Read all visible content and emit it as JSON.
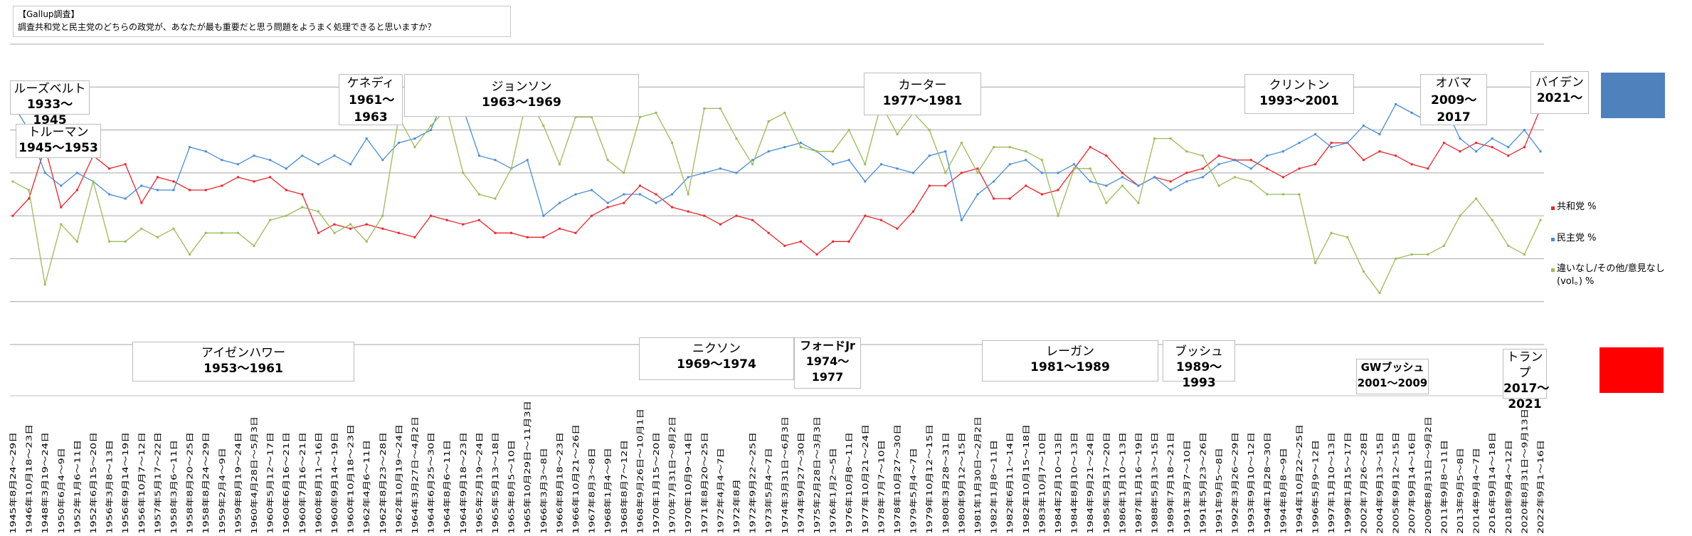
{
  "caption": {
    "line1": "【Gallup調査】",
    "line2": "調査共和党と民主党のどちらの政党が、あなたが最も重要だと思う問題をようまく処理できると思いますか？"
  },
  "presidents_top": [
    {
      "name": "ルーズベルト",
      "years": "1933〜1945"
    },
    {
      "name": "トルーマン",
      "years": "1945〜1953"
    },
    {
      "name": "ケネディ",
      "years": "1961〜1963"
    },
    {
      "name": "ジョンソン",
      "years": "1963〜1969"
    },
    {
      "name": "カーター",
      "years": "1977〜1981"
    },
    {
      "name": "クリントン",
      "years": "1993〜2001"
    },
    {
      "name": "オバマ",
      "years": "2009〜2017"
    },
    {
      "name": "バイデン",
      "years": "2021〜"
    }
  ],
  "presidents_bottom": [
    {
      "name": "アイゼンハワー",
      "years": "1953〜1961"
    },
    {
      "name": "ニクソン",
      "years": "1969〜1974"
    },
    {
      "name": "フォードJr",
      "years": "1974〜1977"
    },
    {
      "name": "レーガン",
      "years": "1981〜1989"
    },
    {
      "name": "ブッシュ",
      "years": "1989〜1993"
    },
    {
      "name": "GWブッシュ",
      "years": "2001〜2009"
    },
    {
      "name": "トランプ",
      "years": "2017〜2021"
    }
  ],
  "legend": {
    "republican": "共和党 %",
    "democrat": "民主党 %",
    "other": "違いなし/その他/意見なし(vol。) %"
  },
  "colors": {
    "republican": "#e8262e",
    "democrat": "#4a8cd6",
    "other": "#9bbb59",
    "dem_swatch": "#4f81bd",
    "rep_swatch": "#ff0000",
    "grid": "#a6a6a6"
  },
  "chart_data": {
    "type": "line",
    "ylim": [
      0,
      70
    ],
    "grid": true,
    "legend_position": "right",
    "x": [
      "1945年8月24〜29日",
      "1946年10月18〜23日",
      "1948年3月19〜24日",
      "1950年6月4〜9日",
      "1952年1月6〜11日",
      "1952年6月15〜20日",
      "1956年3月8〜13日",
      "1956年9月14〜19日",
      "1956年10月7〜12日",
      "1957年5月17〜22日",
      "1958年3月6〜11日",
      "1958年8月20〜25日",
      "1958年8月24〜29日",
      "1959年2月4〜9日",
      "1959年8月19〜24日",
      "1960年4月28日〜5月3日",
      "1960年5月12〜17日",
      "1960年6月16〜21日",
      "1960年7月16〜21日",
      "1960年8月11〜16日",
      "1960年9月14〜19日",
      "1960年10月18〜23日",
      "1962年4月6〜11日",
      "1962年8月23〜28日",
      "1962年10月19〜24日",
      "1964年3月27日〜4月2日",
      "1964年6月25〜30日",
      "1964年8月6〜11日",
      "1964年9月18〜23日",
      "1965年2月19〜24日",
      "1965年5月13〜18日",
      "1965年8月5〜10日",
      "1965年10月29日〜11月3日",
      "1966年3月3〜8日",
      "1966年8月18〜23日",
      "1966年10月21〜26日",
      "1967年8月3〜8日",
      "1968年1月4〜9日",
      "1968年8月7〜12日",
      "1968年9月26日〜10月1日",
      "1970年1月15〜20日",
      "1970年7月31日〜8月2日",
      "1970年10月9〜14日",
      "1971年8月20〜25日",
      "1972年4月4〜7日",
      "1972年8月",
      "1972年9月22〜25日",
      "1973年5月4〜7日",
      "1974年3月31日〜6月3日",
      "1974年9月27〜30日",
      "1975年2月28日〜3月3日",
      "1976年1月2〜5日",
      "1976年10月8〜11日",
      "1977年10月21〜24日",
      "1978年7月7〜10日",
      "1978年10月27〜30日",
      "1979年5月4〜7日",
      "1979年10月12〜15日",
      "1980年3月28〜31日",
      "1980年9月12〜15日",
      "1981年1月30日〜2月2日",
      "1982年1月8〜11日",
      "1982年6月11〜14日",
      "1982年10月15〜18日",
      "1983年10月7〜10日",
      "1984年2月10〜13日",
      "1984年8月10〜13日",
      "1984年9月21〜24日",
      "1985年5月17〜20日",
      "1986年1月10〜13日",
      "1987年1月16〜19日",
      "1988年5月13〜15日",
      "1989年7月18〜21日",
      "1991年3月7〜10日",
      "1991年5月23〜26日",
      "1991年9月5〜8日",
      "1992年3月26〜29日",
      "1993年9月10〜12日",
      "1994年1月28〜30日",
      "1994年8月8〜9日",
      "1994年10月22〜25日",
      "1996年5月9〜12日",
      "1997年1月10〜13日",
      "1999年1月15〜17日",
      "2002年7月26〜28日",
      "2004年9月13〜15日",
      "2005年9月12〜15日",
      "2007年9月14〜16日",
      "2009年8月31日〜9月2日",
      "2011年9月8〜11日",
      "2013年9月5〜8日",
      "2014年9月4〜7日",
      "2016年9月14〜18日",
      "2018年9月4〜12日",
      "2020年8月31日〜9月13日",
      "2022年9月1〜16日"
    ],
    "series": [
      {
        "name": "共和党 %",
        "values": [
          30,
          34,
          46,
          32,
          36,
          44,
          41,
          42,
          33,
          39,
          38,
          36,
          36,
          37,
          39,
          38,
          39,
          36,
          35,
          26,
          28,
          27,
          28,
          27,
          26,
          25,
          30,
          29,
          28,
          29,
          26,
          26,
          25,
          25,
          27,
          26,
          30,
          32,
          33,
          37,
          35,
          32,
          31,
          30,
          28,
          30,
          29,
          26,
          23,
          24,
          21,
          24,
          24,
          30,
          29,
          27,
          31,
          37,
          37,
          40,
          41,
          34,
          34,
          37,
          35,
          36,
          41,
          46,
          44,
          40,
          37,
          39,
          38,
          40,
          41,
          44,
          43,
          43,
          41,
          39,
          41,
          42,
          47,
          47,
          43,
          45,
          44,
          42,
          41,
          47,
          45,
          47,
          46,
          44,
          46,
          55
        ]
      },
      {
        "name": "民主党 %",
        "values": [
          56,
          50,
          40,
          37,
          40,
          38,
          35,
          34,
          37,
          36,
          36,
          46,
          45,
          43,
          42,
          44,
          43,
          41,
          44,
          42,
          44,
          42,
          48,
          43,
          47,
          48,
          50,
          59,
          55,
          44,
          43,
          41,
          43,
          30,
          33,
          35,
          36,
          33,
          35,
          35,
          33,
          35,
          39,
          40,
          41,
          40,
          43,
          45,
          46,
          47,
          45,
          42,
          43,
          38,
          42,
          41,
          40,
          44,
          45,
          29,
          35,
          38,
          42,
          43,
          40,
          40,
          42,
          38,
          37,
          39,
          37,
          39,
          36,
          38,
          39,
          42,
          43,
          41,
          44,
          45,
          47,
          49,
          46,
          47,
          51,
          49,
          56,
          54,
          52,
          56,
          48,
          45,
          48,
          46,
          50,
          45
        ]
      },
      {
        "name": "違いなし/その他/意見なし(vol。) %",
        "values": [
          38,
          36,
          14,
          28,
          24,
          38,
          24,
          24,
          27,
          25,
          27,
          21,
          26,
          26,
          26,
          23,
          29,
          30,
          32,
          31,
          26,
          28,
          24,
          30,
          53,
          46,
          51,
          55,
          40,
          35,
          34,
          41,
          58,
          51,
          42,
          53,
          53,
          43,
          40,
          53,
          54,
          47,
          35,
          55,
          55,
          48,
          42,
          52,
          54,
          46,
          45,
          45,
          50,
          42,
          56,
          49,
          54,
          50,
          40,
          47,
          40,
          46,
          46,
          45,
          43,
          30,
          41,
          41,
          33,
          37,
          33,
          48,
          48,
          45,
          44,
          37,
          39,
          38,
          35,
          35,
          35,
          19,
          26,
          25,
          17,
          12,
          20,
          21,
          21,
          23,
          30,
          34,
          29,
          23,
          21,
          29
        ]
      }
    ]
  }
}
